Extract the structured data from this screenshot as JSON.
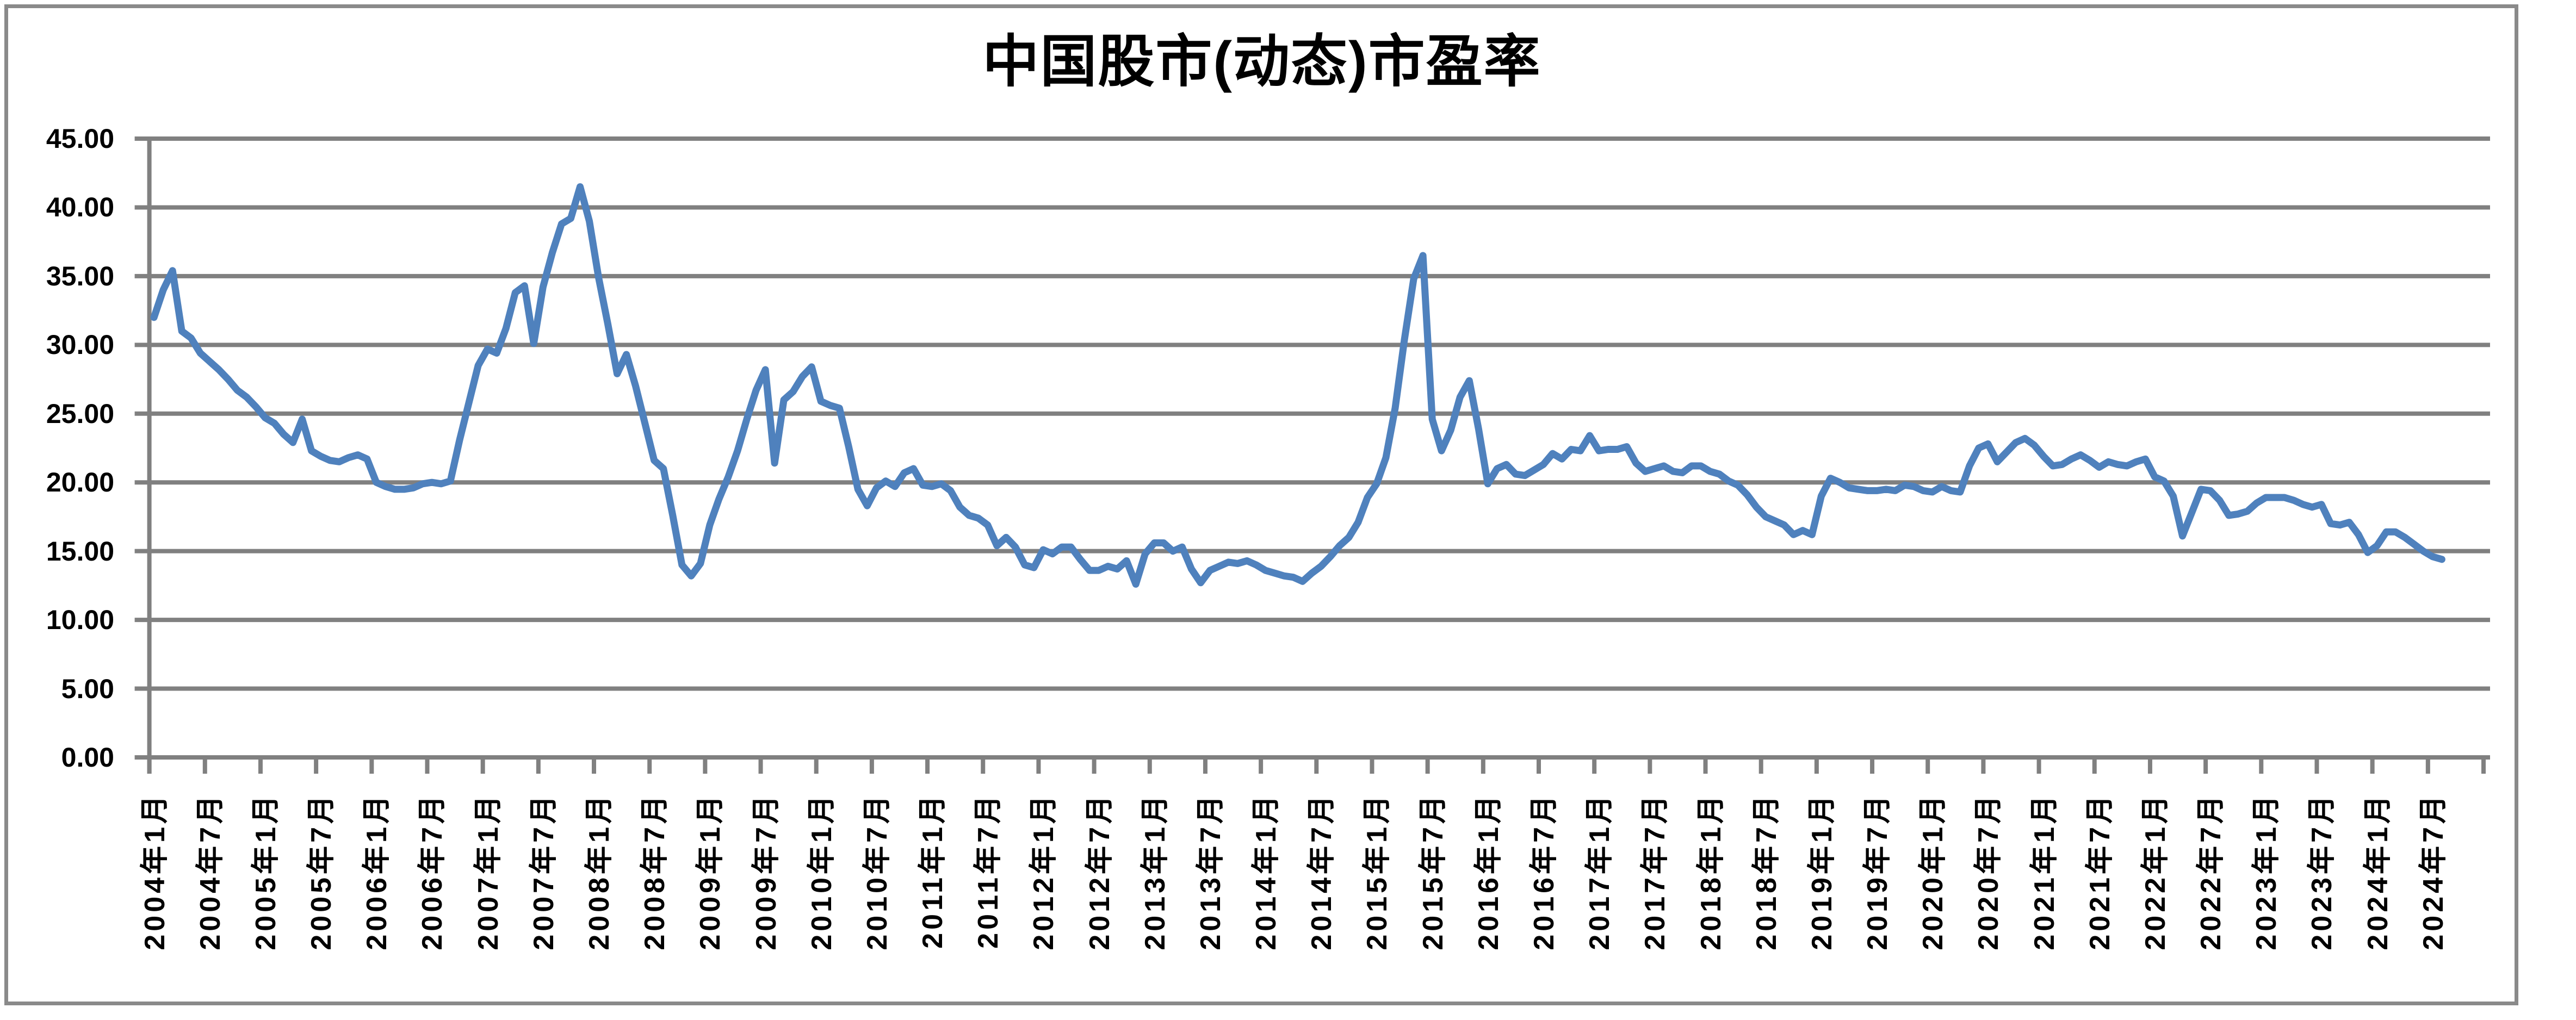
{
  "title": "中国股市(动态)市盈率",
  "colors": {
    "line": "#4F81BD",
    "gridline": "#808080",
    "axis": "#808080",
    "frame_border": "#8a8a8a",
    "text": "#000000",
    "background": "#ffffff"
  },
  "y_axis": {
    "tick_labels": [
      "45.00",
      "40.00",
      "35.00",
      "30.00",
      "25.00",
      "20.00",
      "15.00",
      "10.00",
      "5.00",
      "0.00"
    ],
    "tick_values": [
      45,
      40,
      35,
      30,
      25,
      20,
      15,
      10,
      5,
      0
    ]
  },
  "x_axis": {
    "tick_labels": [
      "2004年1月",
      "2004年7月",
      "2005年1月",
      "2005年7月",
      "2006年1月",
      "2006年7月",
      "2007年1月",
      "2007年7月",
      "2008年1月",
      "2008年7月",
      "2009年1月",
      "2009年7月",
      "2010年1月",
      "2010年7月",
      "2011年1月",
      "2011年7月",
      "2012年1月",
      "2012年7月",
      "2013年1月",
      "2013年7月",
      "2014年1月",
      "2014年7月",
      "2015年1月",
      "2015年7月",
      "2016年1月",
      "2016年7月",
      "2017年1月",
      "2017年7月",
      "2018年1月",
      "2018年7月",
      "2019年1月",
      "2019年7月",
      "2020年1月",
      "2020年7月",
      "2021年1月",
      "2021年7月",
      "2022年1月",
      "2022年7月",
      "2023年1月",
      "2023年7月",
      "2024年1月",
      "2024年7月"
    ]
  },
  "chart_data": {
    "type": "line",
    "title": "中国股市(动态)市盈率",
    "xlabel": "",
    "ylabel": "",
    "ylim": [
      0,
      45
    ],
    "y_tick_step": 5,
    "grid": "horizontal",
    "legend": "none",
    "x_start_month": "2004-01",
    "x_end_month": "2024-08",
    "x_interval": "month",
    "x_label_every_n_months": 6,
    "series": [
      {
        "name": "中国股市(动态)市盈率",
        "color": "#4F81BD",
        "values": [
          32.0,
          34.0,
          35.4,
          31.0,
          30.5,
          29.4,
          28.8,
          28.2,
          27.5,
          26.7,
          26.2,
          25.5,
          24.7,
          24.3,
          23.5,
          22.9,
          24.6,
          22.3,
          21.9,
          21.6,
          21.5,
          21.8,
          22.0,
          21.7,
          20.0,
          19.7,
          19.5,
          19.5,
          19.6,
          19.9,
          20.0,
          19.9,
          20.1,
          23.1,
          25.8,
          28.5,
          29.7,
          29.4,
          31.2,
          33.8,
          34.3,
          30.1,
          34.2,
          36.7,
          38.8,
          39.2,
          41.5,
          39.0,
          34.9,
          31.5,
          27.9,
          29.3,
          27.0,
          24.3,
          21.6,
          21.0,
          17.6,
          14.0,
          13.2,
          14.1,
          16.9,
          18.8,
          20.4,
          22.3,
          24.6,
          26.7,
          28.2,
          21.4,
          26.0,
          26.6,
          27.7,
          28.4,
          25.9,
          25.6,
          25.4,
          22.6,
          19.5,
          18.3,
          19.6,
          20.1,
          19.7,
          20.7,
          21.0,
          19.8,
          19.7,
          19.9,
          19.4,
          18.2,
          17.6,
          17.4,
          16.9,
          15.4,
          16.0,
          15.3,
          14.0,
          13.8,
          15.1,
          14.8,
          15.3,
          15.3,
          14.4,
          13.6,
          13.6,
          13.9,
          13.7,
          14.3,
          12.6,
          14.8,
          15.6,
          15.6,
          15.0,
          15.3,
          13.7,
          12.7,
          13.6,
          13.9,
          14.2,
          14.1,
          14.3,
          14.0,
          13.6,
          13.4,
          13.2,
          13.1,
          12.8,
          13.4,
          13.9,
          14.6,
          15.4,
          16.0,
          17.1,
          18.9,
          19.9,
          21.8,
          25.4,
          30.4,
          34.8,
          36.5,
          24.6,
          22.3,
          23.8,
          26.2,
          27.4,
          23.9,
          19.9,
          21.0,
          21.3,
          20.6,
          20.5,
          20.9,
          21.3,
          22.1,
          21.7,
          22.4,
          22.3,
          23.4,
          22.3,
          22.4,
          22.4,
          22.6,
          21.4,
          20.8,
          21.0,
          21.2,
          20.8,
          20.7,
          21.2,
          21.2,
          20.8,
          20.6,
          20.1,
          19.8,
          19.1,
          18.2,
          17.5,
          17.2,
          16.9,
          16.2,
          16.5,
          16.2,
          19.0,
          20.3,
          20.0,
          19.6,
          19.5,
          19.4,
          19.4,
          19.5,
          19.4,
          19.8,
          19.7,
          19.4,
          19.3,
          19.7,
          19.4,
          19.3,
          21.2,
          22.5,
          22.8,
          21.5,
          22.2,
          22.9,
          23.2,
          22.7,
          21.9,
          21.2,
          21.3,
          21.7,
          22.0,
          21.6,
          21.1,
          21.5,
          21.3,
          21.2,
          21.5,
          21.7,
          20.4,
          20.1,
          19.0,
          16.1,
          17.8,
          19.5,
          19.4,
          18.7,
          17.6,
          17.7,
          17.9,
          18.5,
          18.9,
          18.9,
          18.9,
          18.7,
          18.4,
          18.2,
          18.4,
          17.0,
          16.9,
          17.1,
          16.2,
          14.9,
          15.4,
          16.4,
          16.4,
          16.0,
          15.5,
          15.0,
          14.6,
          14.4
        ]
      }
    ]
  }
}
